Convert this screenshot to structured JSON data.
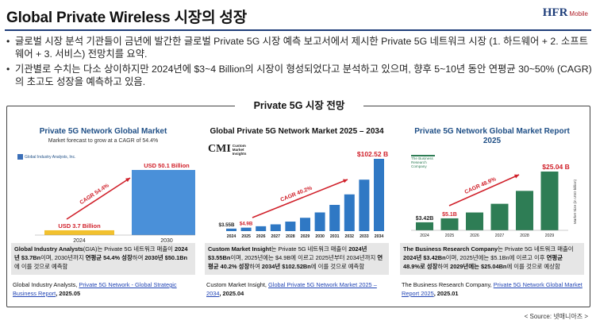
{
  "header": {
    "title": "Global Private Wireless 시장의 성장",
    "logo_main": "HFR",
    "logo_sub": "Mobile"
  },
  "bullets": [
    "글로벌 시장 분석 기관들이 금년에 발간한 글로벌 Private 5G 시장 예측 보고서에서 제시한 Private 5G 네트워크 시장 (1. 하드웨어 + 2. 소프트웨어 + 3. 서비스) 전망치를 요약.",
    "기관별로 수치는 다소 상이하지만 2024년에 $3~4 Billion의 시장이 형성되었다고 분석하고 있으며, 향후 5~10년 동안 연평균 30~50% (CAGR)의 초고도 성장을 예측하고 있음."
  ],
  "section_label": "Private 5G 시장 전망",
  "source_note": "< Source: 넷매니아즈 >",
  "panels": [
    {
      "title": "Private 5G Network Global Market",
      "subtitle": "Market forecast to grow at a CAGR of 54.4%",
      "brand": "Global Industry Analysts, Inc.",
      "desc_bold1": "Global Industry Analysts",
      "desc_text1": "(GIA)는 Private 5G 네트워크 매출이 ",
      "desc_bold2": "2024년 $3.7Bn",
      "desc_text2": "이며, 2030년까지 ",
      "desc_bold3": "연평균 54.4% 성장",
      "desc_text3": "하여 ",
      "desc_bold4": "2030년 $50.1Bn",
      "desc_text4": "에 이를 것으로 예측함",
      "src_text": "Global Industry Analysts, ",
      "src_link": "Private 5G Network - Global Strategic Business Report",
      "src_date": ", 2025.05"
    },
    {
      "title": "Global Private 5G Network Market 2025 – 2034",
      "brand": "CMI",
      "brand_sub1": "Custom",
      "brand_sub2": "Market",
      "brand_sub3": "Insights",
      "desc_bold1": "Custom Market Insight",
      "desc_text1": "는 Private 5G 네트워크 매출이 ",
      "desc_bold2": "2024년 $3.55Bn",
      "desc_text2": "이며, 2025년에는 $4.9B에 이르고 2025년부터 2034년까지 ",
      "desc_bold3": "연평균 40.2% 성장",
      "desc_text3": "하여 ",
      "desc_bold4": "2034년 $102.52Bn",
      "desc_text4": "에 이를 것으로 예측함",
      "src_text": "Custom Market Insight, ",
      "src_link": "Global Private 5G Network Market 2025 – 2034",
      "src_date": ", 2025.04"
    },
    {
      "title": "Private 5G Network Global Market Report",
      "title2": "2025",
      "brand": "The Business Research Company",
      "desc_bold1": "The Business Research Company",
      "desc_text1": "는 Private 5G 네트워크 매출이 ",
      "desc_bold2": "2024년 $3.42Bn",
      "desc_text2": "이며, 2025년에는 $5.1Bn에 이르고 이후 ",
      "desc_bold3": "연평균 48.9%로 성장",
      "desc_text3": "하여 ",
      "desc_bold4": "2029년에는 $25.04Bn",
      "desc_text4": "에 이를 것으로 예상함",
      "src_text": "The Business Research Company, ",
      "src_link": "Private 5G Network Global Market Report 2025",
      "src_date": ", 2025.01"
    }
  ],
  "chart_data": [
    {
      "type": "bar",
      "categories": [
        "2024",
        "2030"
      ],
      "values": [
        3.7,
        50.1
      ],
      "value_labels": [
        "USD 3.7 Billion",
        "USD 50.1 Billion"
      ],
      "annotation": "CAGR 54.4%",
      "colors": [
        "#f2c12e",
        "#4a90d9"
      ]
    },
    {
      "type": "bar",
      "categories": [
        "2024",
        "2025",
        "2026",
        "2027",
        "2028",
        "2029",
        "2030",
        "2031",
        "2032",
        "2033",
        "2034"
      ],
      "values": [
        3.55,
        4.9,
        6.9,
        9.6,
        13.5,
        18.9,
        26.5,
        37.2,
        52.1,
        73.0,
        102.52
      ],
      "value_labels": [
        "$3.55B",
        "$4.9B",
        "",
        "",
        "",
        "",
        "",
        "",
        "",
        "",
        "$102.52 B"
      ],
      "annotation": "CAGR 40.2%",
      "color": "#2f78c4"
    },
    {
      "type": "bar",
      "categories": [
        "2024",
        "2025",
        "2026",
        "2027",
        "2028",
        "2029"
      ],
      "values": [
        3.42,
        5.1,
        7.6,
        11.3,
        16.8,
        25.04
      ],
      "value_labels": [
        "$3.42B",
        "$5.1B",
        "",
        "",
        "",
        "$25.04 B"
      ],
      "annotation": "CAGR 48.9%",
      "ylabel": "Market Size (in USD billion)",
      "color": "#2e7d55"
    }
  ]
}
